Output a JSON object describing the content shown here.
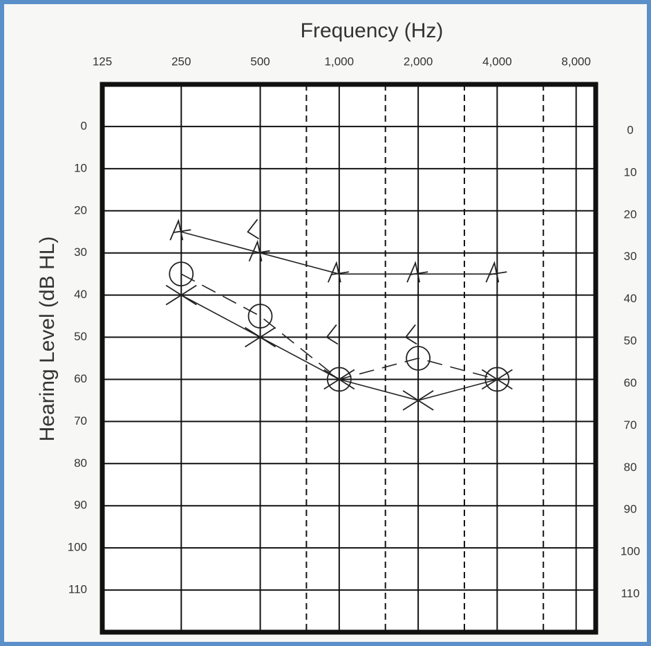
{
  "chart_data": {
    "type": "audiogram",
    "title": "Frequency (Hz)",
    "y_label": "Hearing Level (dB HL)",
    "x": [
      250,
      500,
      1000,
      2000,
      4000
    ],
    "log_x": true,
    "xlim": [
      125,
      9500
    ],
    "xticks": [
      125,
      250,
      500,
      {
        "value": 1000,
        "label": "1,000"
      },
      {
        "value": 2000,
        "label": "2,000"
      },
      {
        "value": 4000,
        "label": "4,000"
      },
      {
        "value": 8000,
        "label": "8,000"
      }
    ],
    "xminor_ticks": [
      750,
      1500,
      3000,
      6000
    ],
    "ylim": [
      -10,
      120
    ],
    "y_reversed": true,
    "yticks": [
      0,
      10,
      20,
      30,
      40,
      50,
      60,
      70,
      80,
      90,
      100,
      110
    ],
    "grid": true,
    "series": [
      {
        "marker": "A",
        "color": "#222222",
        "line_style": "solid",
        "values": [
          25,
          30,
          35,
          35,
          35
        ]
      },
      {
        "marker": "circle",
        "color": "#222222",
        "line_style": "dashed",
        "values": [
          35,
          45,
          60,
          55,
          60
        ]
      },
      {
        "marker": "cross",
        "color": "#222222",
        "line_style": "solid",
        "values": [
          40,
          50,
          60,
          65,
          60
        ]
      },
      {
        "marker": "bracket",
        "color": "#222222",
        "line_style": "none",
        "values": [
          null,
          25,
          50,
          50,
          null
        ]
      }
    ]
  }
}
